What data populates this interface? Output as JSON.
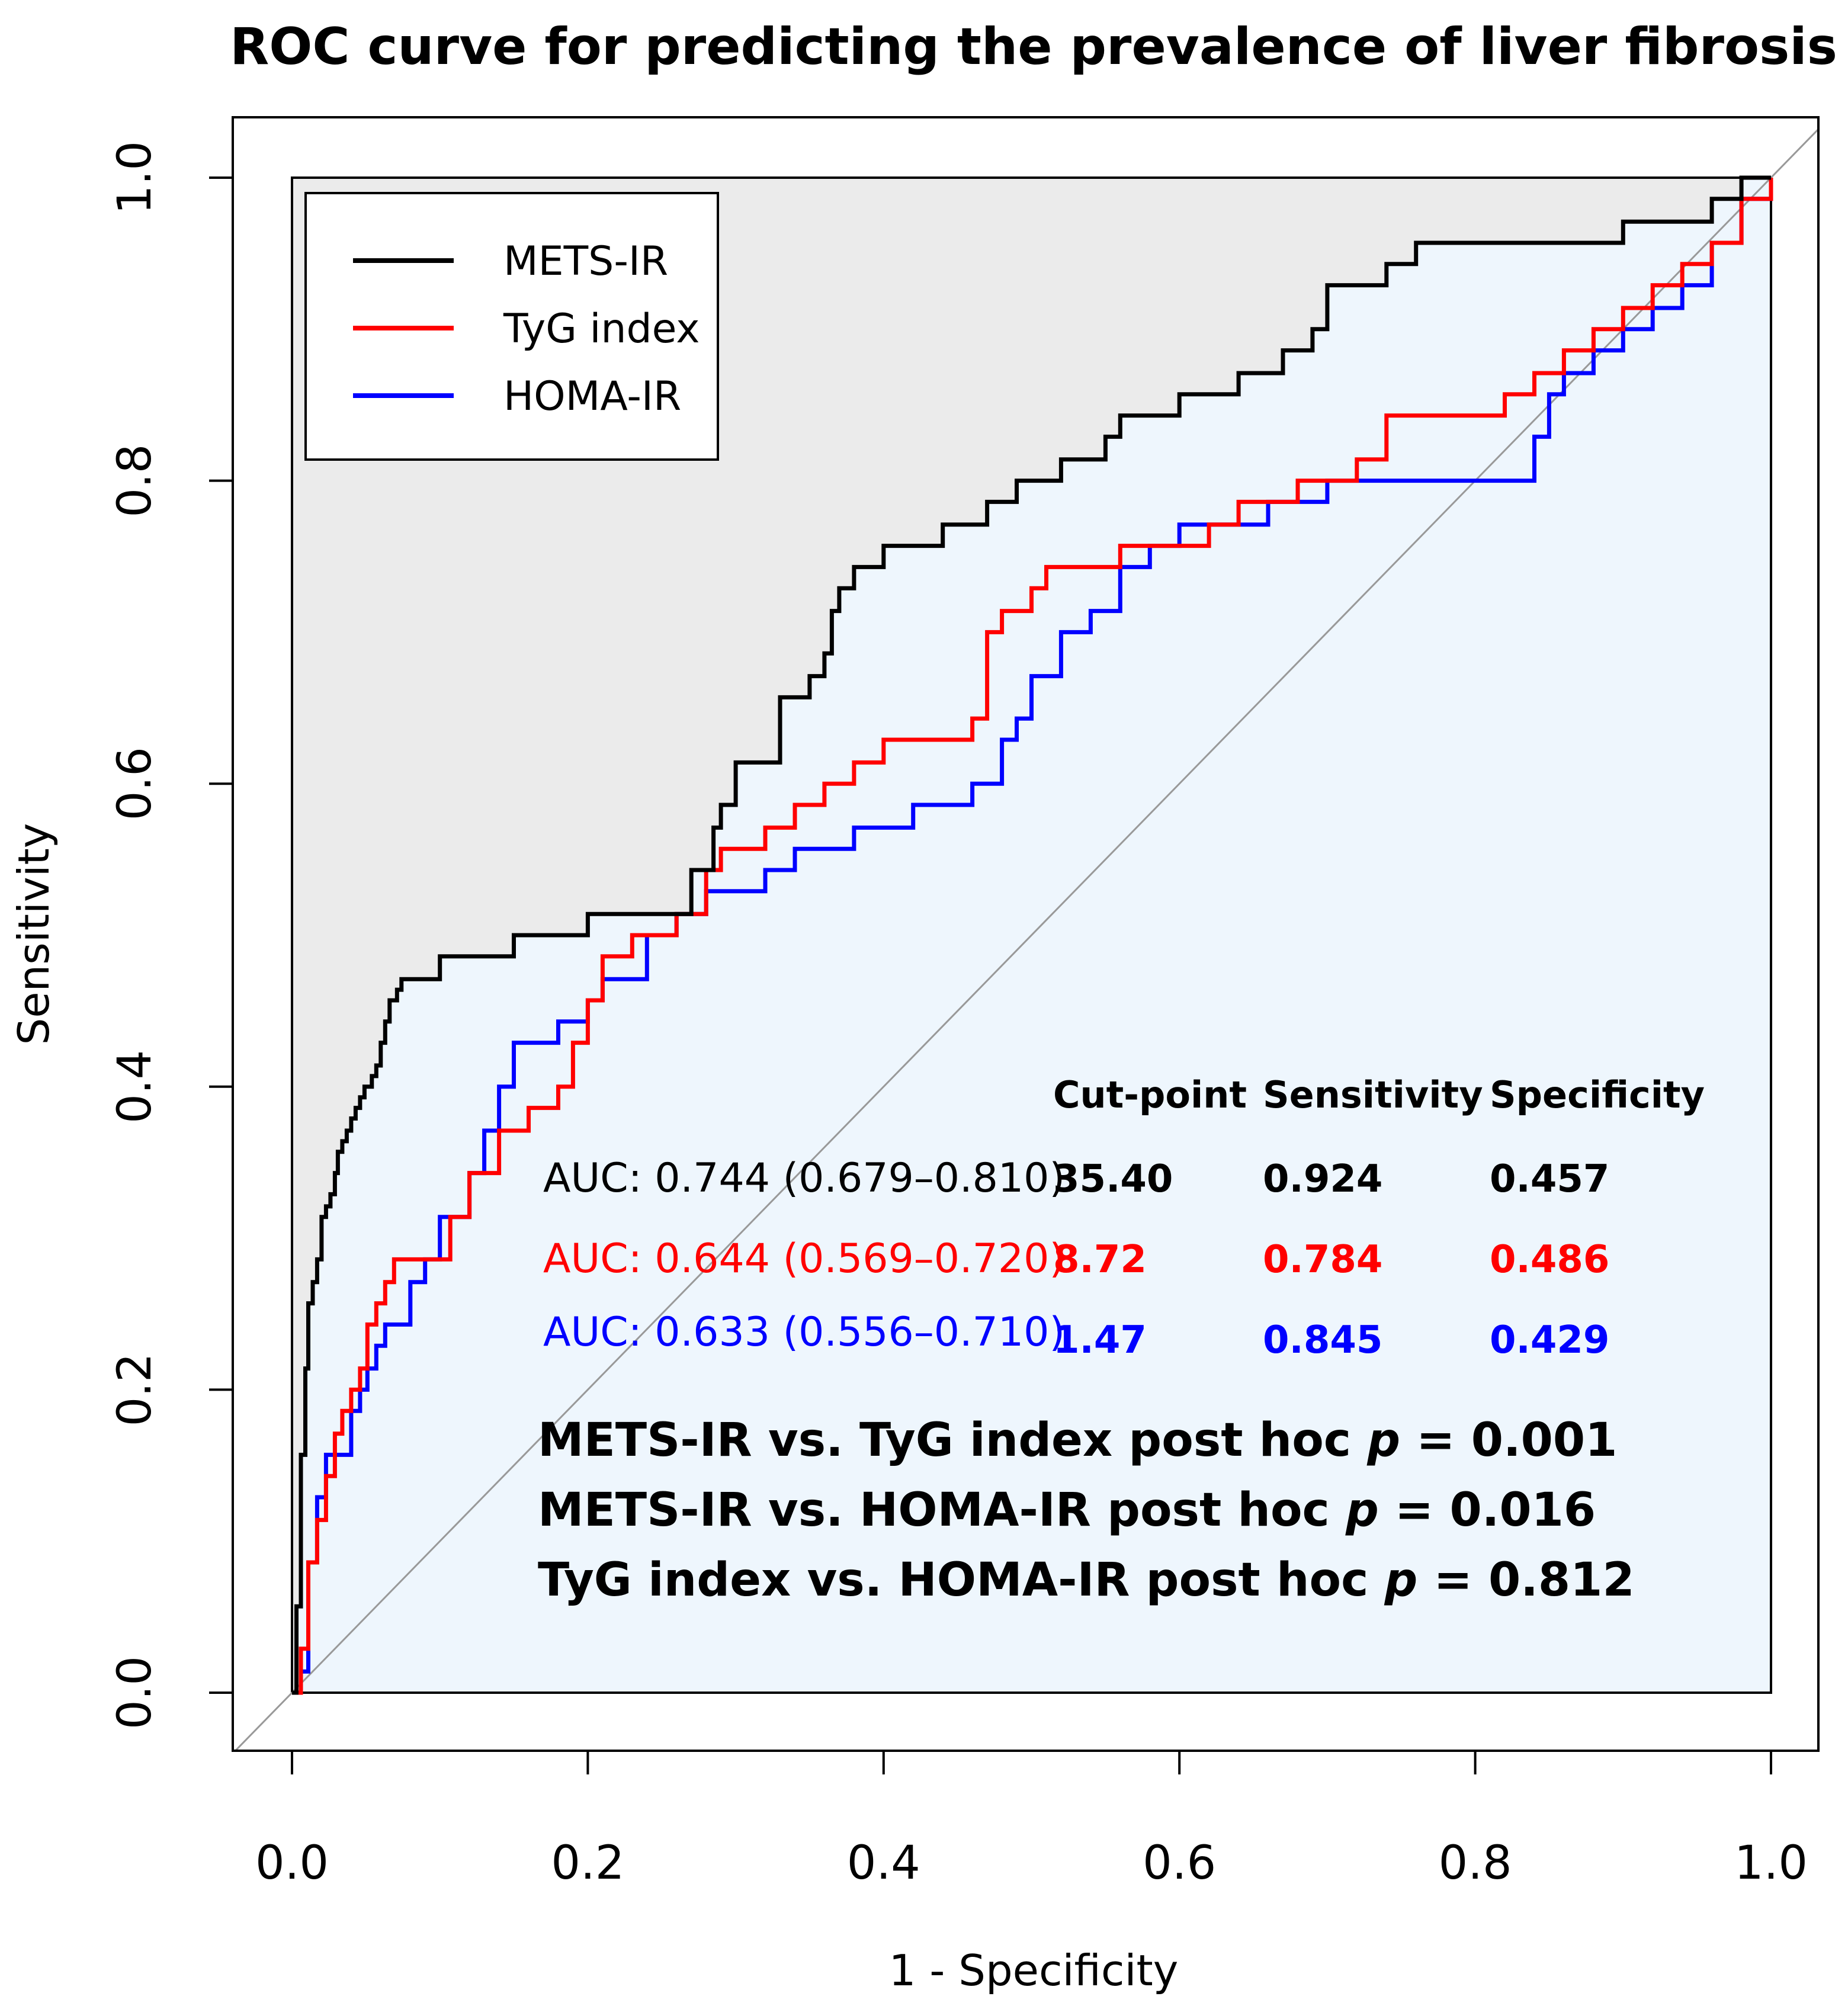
{
  "chart_data": {
    "type": "line",
    "title": "ROC curve for predicting the prevalence of liver fibrosis",
    "xlabel": "1 - Specificity",
    "ylabel": "Sensitivity",
    "xlim": [
      0,
      1
    ],
    "ylim": [
      0,
      1
    ],
    "x_ticks": [
      "0.0",
      "0.2",
      "0.4",
      "0.6",
      "0.8",
      "1.0"
    ],
    "y_ticks": [
      "0.0",
      "0.2",
      "0.4",
      "0.6",
      "0.8",
      "1.0"
    ],
    "colors": {
      "mets": "#000000",
      "tyg": "#ff0000",
      "homa": "#0000ff",
      "diag": "#999999",
      "gray_fill": "#ebebeb",
      "blue_fill": "#eef6fd"
    },
    "series": [
      {
        "name": "METS-IR",
        "color": "#000000",
        "x": [
          0.0,
          0.003,
          0.006,
          0.009,
          0.011,
          0.014,
          0.017,
          0.02,
          0.023,
          0.026,
          0.029,
          0.031,
          0.034,
          0.037,
          0.04,
          0.043,
          0.046,
          0.049,
          0.051,
          0.054,
          0.057,
          0.06,
          0.063,
          0.066,
          0.069,
          0.071,
          0.074,
          0.077,
          0.08,
          0.09,
          0.1,
          0.107,
          0.12,
          0.15,
          0.17,
          0.2,
          0.25,
          0.27,
          0.275,
          0.285,
          0.29,
          0.3,
          0.31,
          0.33,
          0.335,
          0.35,
          0.36,
          0.365,
          0.37,
          0.38,
          0.39,
          0.4,
          0.42,
          0.44,
          0.47,
          0.48,
          0.49,
          0.52,
          0.54,
          0.55,
          0.56,
          0.58,
          0.6,
          0.62,
          0.64,
          0.67,
          0.69,
          0.7,
          0.72,
          0.74,
          0.76,
          0.78,
          0.8,
          0.85,
          0.9,
          0.92,
          0.94,
          0.96,
          0.98,
          1.0
        ],
        "y": [
          0.0,
          0.057,
          0.157,
          0.214,
          0.257,
          0.271,
          0.286,
          0.314,
          0.321,
          0.329,
          0.343,
          0.357,
          0.364,
          0.371,
          0.379,
          0.386,
          0.393,
          0.4,
          0.4,
          0.407,
          0.414,
          0.429,
          0.443,
          0.457,
          0.457,
          0.464,
          0.471,
          0.471,
          0.471,
          0.471,
          0.486,
          0.486,
          0.486,
          0.5,
          0.5,
          0.514,
          0.514,
          0.543,
          0.543,
          0.571,
          0.586,
          0.614,
          0.614,
          0.657,
          0.657,
          0.671,
          0.686,
          0.714,
          0.729,
          0.743,
          0.743,
          0.757,
          0.757,
          0.771,
          0.786,
          0.786,
          0.8,
          0.814,
          0.814,
          0.829,
          0.843,
          0.843,
          0.857,
          0.857,
          0.871,
          0.886,
          0.9,
          0.929,
          0.929,
          0.943,
          0.957,
          0.957,
          0.957,
          0.957,
          0.971,
          0.971,
          0.971,
          0.986,
          1.0,
          1.0
        ]
      },
      {
        "name": "TyG index",
        "color": "#ff0000",
        "x": [
          0.0,
          0.006,
          0.011,
          0.017,
          0.023,
          0.029,
          0.034,
          0.04,
          0.046,
          0.051,
          0.057,
          0.063,
          0.069,
          0.074,
          0.09,
          0.107,
          0.12,
          0.14,
          0.16,
          0.18,
          0.19,
          0.2,
          0.21,
          0.22,
          0.23,
          0.26,
          0.28,
          0.29,
          0.32,
          0.34,
          0.36,
          0.38,
          0.4,
          0.44,
          0.46,
          0.47,
          0.48,
          0.5,
          0.51,
          0.52,
          0.54,
          0.56,
          0.58,
          0.6,
          0.62,
          0.64,
          0.66,
          0.68,
          0.7,
          0.72,
          0.74,
          0.76,
          0.78,
          0.8,
          0.82,
          0.84,
          0.86,
          0.88,
          0.9,
          0.92,
          0.94,
          0.96,
          0.98,
          1.0
        ],
        "y": [
          0.0,
          0.029,
          0.086,
          0.114,
          0.143,
          0.171,
          0.186,
          0.2,
          0.214,
          0.243,
          0.257,
          0.271,
          0.286,
          0.286,
          0.286,
          0.314,
          0.343,
          0.371,
          0.386,
          0.4,
          0.429,
          0.457,
          0.486,
          0.486,
          0.5,
          0.514,
          0.543,
          0.557,
          0.571,
          0.586,
          0.6,
          0.614,
          0.629,
          0.629,
          0.643,
          0.7,
          0.714,
          0.729,
          0.743,
          0.743,
          0.743,
          0.757,
          0.757,
          0.757,
          0.771,
          0.786,
          0.786,
          0.8,
          0.8,
          0.814,
          0.843,
          0.843,
          0.843,
          0.843,
          0.857,
          0.871,
          0.886,
          0.9,
          0.914,
          0.929,
          0.943,
          0.957,
          0.986,
          1.0
        ]
      },
      {
        "name": "HOMA-IR",
        "color": "#0000ff",
        "x": [
          0.0,
          0.006,
          0.011,
          0.017,
          0.023,
          0.029,
          0.04,
          0.046,
          0.051,
          0.057,
          0.063,
          0.069,
          0.08,
          0.09,
          0.1,
          0.12,
          0.13,
          0.14,
          0.15,
          0.16,
          0.18,
          0.2,
          0.21,
          0.22,
          0.24,
          0.26,
          0.28,
          0.3,
          0.32,
          0.34,
          0.38,
          0.42,
          0.46,
          0.48,
          0.49,
          0.5,
          0.52,
          0.54,
          0.56,
          0.58,
          0.6,
          0.62,
          0.66,
          0.7,
          0.74,
          0.78,
          0.82,
          0.84,
          0.85,
          0.86,
          0.88,
          0.9,
          0.92,
          0.94,
          0.96,
          0.98,
          1.0
        ],
        "y": [
          0.0,
          0.014,
          0.086,
          0.129,
          0.157,
          0.157,
          0.186,
          0.2,
          0.214,
          0.229,
          0.243,
          0.243,
          0.271,
          0.286,
          0.314,
          0.343,
          0.371,
          0.4,
          0.429,
          0.429,
          0.443,
          0.457,
          0.471,
          0.471,
          0.5,
          0.514,
          0.529,
          0.529,
          0.543,
          0.557,
          0.571,
          0.586,
          0.6,
          0.629,
          0.643,
          0.671,
          0.7,
          0.714,
          0.743,
          0.757,
          0.771,
          0.771,
          0.786,
          0.8,
          0.8,
          0.8,
          0.8,
          0.829,
          0.857,
          0.871,
          0.886,
          0.9,
          0.914,
          0.929,
          0.957,
          0.986,
          1.0
        ]
      }
    ],
    "legend": [
      {
        "label": "METS-IR",
        "color": "#000000"
      },
      {
        "label": "TyG index",
        "color": "#ff0000"
      },
      {
        "label": "HOMA-IR",
        "color": "#0000ff"
      }
    ],
    "stats_table": {
      "headers": [
        "Cut-point",
        "Sensitivity",
        "Specificity"
      ],
      "rows": [
        {
          "auc": "AUC: 0.744 (0.679–0.810)",
          "cut": "35.40",
          "sens": "0.924",
          "spec": "0.457",
          "color": "#000000"
        },
        {
          "auc": "AUC: 0.644 (0.569–0.720)",
          "cut": "8.72",
          "sens": "0.784",
          "spec": "0.486",
          "color": "#ff0000"
        },
        {
          "auc": "AUC: 0.633 (0.556–0.710)",
          "cut": "1.47",
          "sens": "0.845",
          "spec": "0.429",
          "color": "#0000ff"
        }
      ]
    },
    "posthoc": [
      {
        "text": "METS-IR vs. TyG index post hoc ",
        "p": "p",
        "value": " = 0.001"
      },
      {
        "text": "METS-IR vs. HOMA-IR post hoc ",
        "p": "p",
        "value": " = 0.016"
      },
      {
        "text": "TyG index vs. HOMA-IR post hoc ",
        "p": "p",
        "value": " = 0.812"
      }
    ]
  }
}
